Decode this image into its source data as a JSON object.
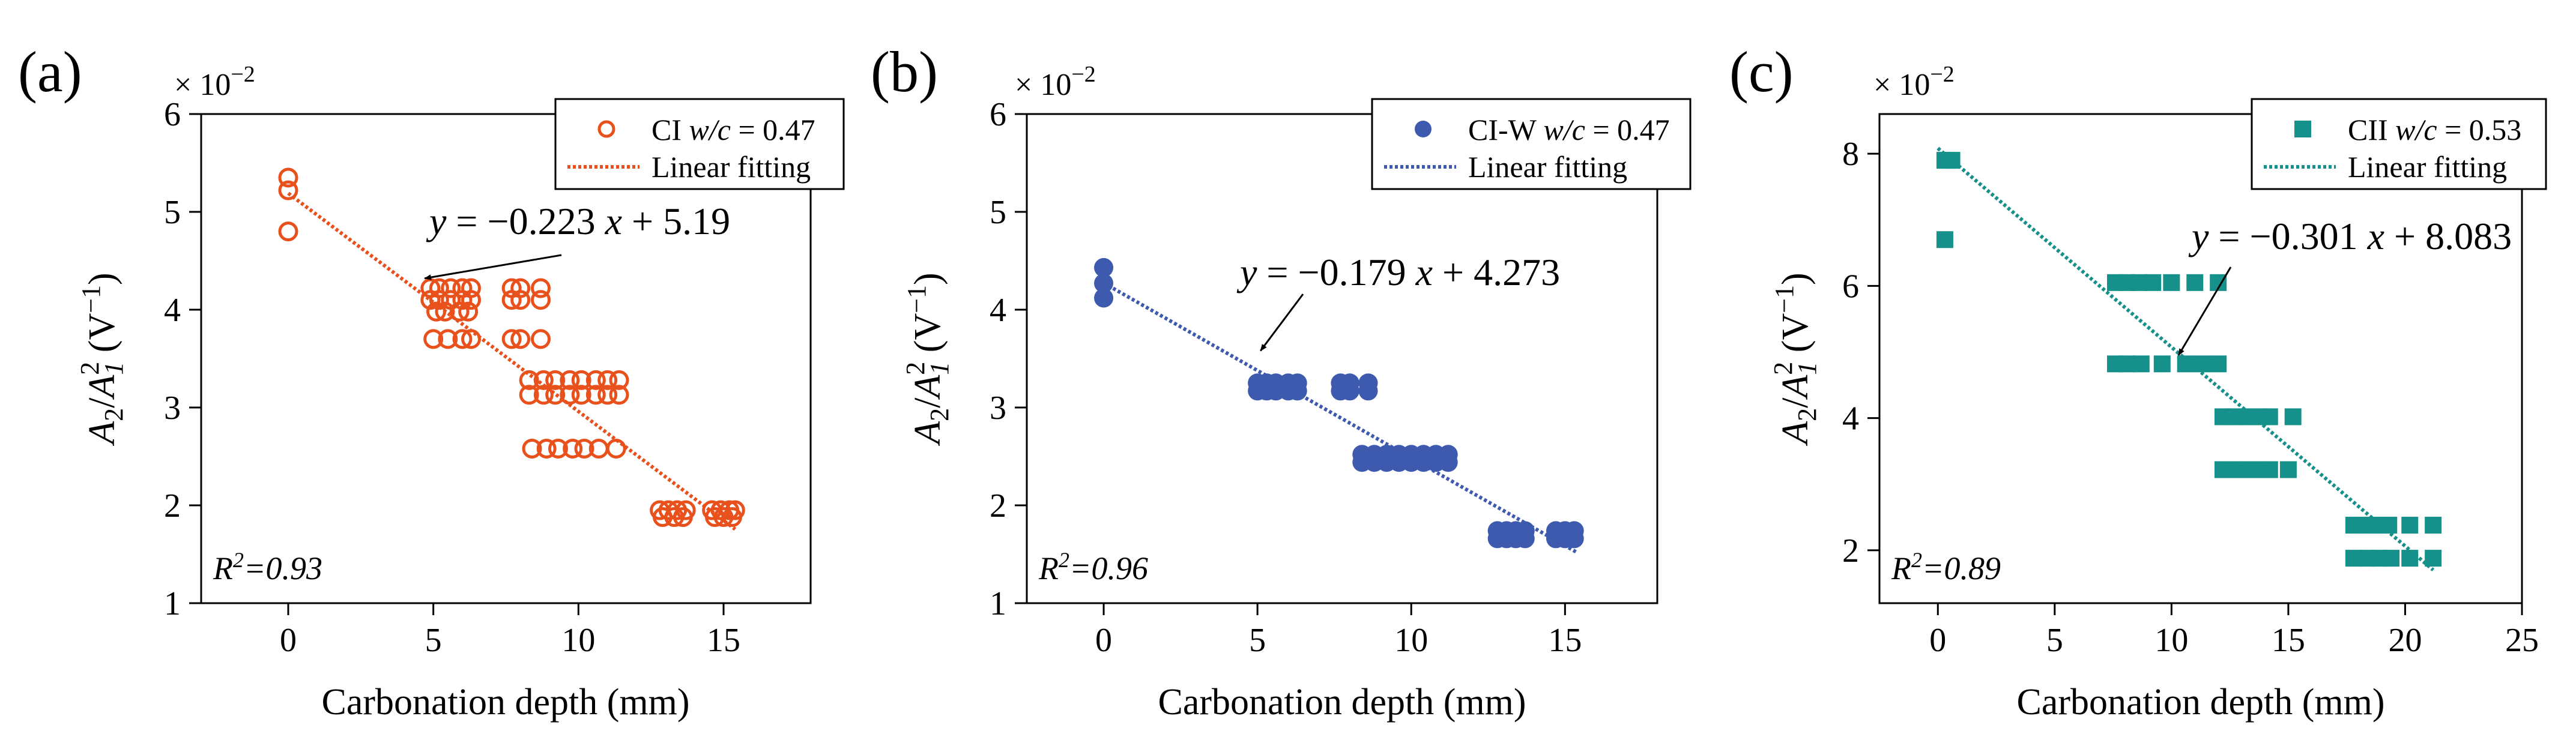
{
  "chart_data": [
    {
      "type": "scatter",
      "panel_label": "(a)",
      "multiplier": "× 10",
      "multiplier_exp": "−2",
      "xlabel": "Carbonation depth (mm)",
      "ylabel": {
        "a": "A",
        "sub_a": "2",
        "slash": "/",
        "b": "A",
        "sub_b": "1",
        "sup_b": "2",
        "unit": " (V",
        "unit_sup": "−1",
        "close": ")"
      },
      "xlim": [
        -3,
        18
      ],
      "ylim": [
        1,
        6
      ],
      "xticks": [
        0,
        5,
        10,
        15
      ],
      "yticks": [
        1,
        2,
        3,
        4,
        5,
        6
      ],
      "color": "#e8501c",
      "marker": "open-circle",
      "legend": {
        "placement": "top-right",
        "series_name": "CI ",
        "series_ratio": "w/c",
        "series_value": " = 0.47",
        "fit_name": "Linear fitting"
      },
      "fit": {
        "slope": -0.223,
        "intercept": 5.19,
        "x_range": [
          0,
          15.4
        ]
      },
      "equation": {
        "y": "y",
        "mid": " = −0.223 ",
        "x": "x",
        "tail": " + 5.19"
      },
      "r2": {
        "base": "R",
        "sup": "2",
        "value": "=0.93"
      },
      "arrow_to": [
        4.7,
        4.32
      ],
      "points": [
        [
          0,
          5.35
        ],
        [
          0,
          5.22
        ],
        [
          0,
          4.8
        ],
        [
          4.9,
          4.22
        ],
        [
          5.2,
          4.22
        ],
        [
          5.6,
          4.22
        ],
        [
          6.0,
          4.22
        ],
        [
          6.3,
          4.22
        ],
        [
          4.9,
          4.1
        ],
        [
          5.2,
          4.1
        ],
        [
          5.6,
          4.1
        ],
        [
          6.0,
          4.1
        ],
        [
          6.3,
          4.1
        ],
        [
          5.1,
          3.98
        ],
        [
          5.4,
          3.98
        ],
        [
          5.9,
          3.98
        ],
        [
          6.2,
          3.98
        ],
        [
          5.0,
          3.7
        ],
        [
          5.5,
          3.7
        ],
        [
          6.0,
          3.7
        ],
        [
          6.3,
          3.7
        ],
        [
          7.7,
          4.22
        ],
        [
          8.0,
          4.22
        ],
        [
          8.7,
          4.22
        ],
        [
          7.7,
          4.1
        ],
        [
          8.0,
          4.1
        ],
        [
          8.7,
          4.1
        ],
        [
          7.7,
          3.7
        ],
        [
          8.0,
          3.7
        ],
        [
          8.7,
          3.7
        ],
        [
          8.3,
          3.28
        ],
        [
          8.8,
          3.28
        ],
        [
          9.2,
          3.28
        ],
        [
          9.7,
          3.28
        ],
        [
          10.1,
          3.28
        ],
        [
          10.6,
          3.28
        ],
        [
          11.0,
          3.28
        ],
        [
          11.4,
          3.28
        ],
        [
          8.3,
          3.13
        ],
        [
          8.8,
          3.13
        ],
        [
          9.2,
          3.13
        ],
        [
          9.7,
          3.13
        ],
        [
          10.1,
          3.13
        ],
        [
          10.6,
          3.13
        ],
        [
          11.0,
          3.13
        ],
        [
          11.4,
          3.13
        ],
        [
          8.4,
          2.58
        ],
        [
          8.9,
          2.58
        ],
        [
          9.3,
          2.58
        ],
        [
          9.8,
          2.58
        ],
        [
          10.2,
          2.58
        ],
        [
          10.7,
          2.58
        ],
        [
          11.3,
          2.58
        ],
        [
          12.8,
          1.95
        ],
        [
          13.1,
          1.95
        ],
        [
          13.4,
          1.95
        ],
        [
          13.7,
          1.95
        ],
        [
          12.9,
          1.88
        ],
        [
          13.3,
          1.88
        ],
        [
          13.6,
          1.88
        ],
        [
          14.6,
          1.95
        ],
        [
          14.9,
          1.95
        ],
        [
          15.2,
          1.95
        ],
        [
          15.4,
          1.95
        ],
        [
          14.7,
          1.88
        ],
        [
          15.0,
          1.88
        ],
        [
          15.3,
          1.88
        ]
      ]
    },
    {
      "type": "scatter",
      "panel_label": "(b)",
      "multiplier": "× 10",
      "multiplier_exp": "−2",
      "xlabel": "Carbonation depth (mm)",
      "ylabel": {
        "a": "A",
        "sub_a": "2",
        "slash": "/",
        "b": "A",
        "sub_b": "1",
        "sup_b": "2",
        "unit": " (V",
        "unit_sup": "−1",
        "close": ")"
      },
      "xlim": [
        -2.5,
        18
      ],
      "ylim": [
        1,
        6
      ],
      "xticks": [
        0,
        5,
        10,
        15
      ],
      "yticks": [
        1,
        2,
        3,
        4,
        5,
        6
      ],
      "color": "#3d5aae",
      "marker": "filled-circle",
      "legend": {
        "placement": "top-right",
        "series_name": "CI-W ",
        "series_ratio": "w/c",
        "series_value": " = 0.47",
        "fit_name": "Linear fitting"
      },
      "fit": {
        "slope": -0.179,
        "intercept": 4.273,
        "x_range": [
          0,
          15.4
        ]
      },
      "equation": {
        "y": "y",
        "mid": " = −0.179 ",
        "x": "x",
        "tail": " + 4.273"
      },
      "r2": {
        "base": "R",
        "sup": "2",
        "value": "=0.96"
      },
      "arrow_to": [
        5.1,
        3.58
      ],
      "points": [
        [
          0,
          4.43
        ],
        [
          0,
          4.27
        ],
        [
          0,
          4.12
        ],
        [
          5.0,
          3.25
        ],
        [
          5.3,
          3.25
        ],
        [
          5.6,
          3.25
        ],
        [
          6.0,
          3.25
        ],
        [
          6.3,
          3.25
        ],
        [
          5.0,
          3.17
        ],
        [
          5.3,
          3.17
        ],
        [
          5.6,
          3.17
        ],
        [
          6.0,
          3.17
        ],
        [
          6.3,
          3.17
        ],
        [
          7.7,
          3.25
        ],
        [
          8.0,
          3.25
        ],
        [
          8.6,
          3.25
        ],
        [
          7.7,
          3.17
        ],
        [
          8.0,
          3.17
        ],
        [
          8.6,
          3.17
        ],
        [
          8.4,
          2.52
        ],
        [
          8.8,
          2.52
        ],
        [
          9.2,
          2.52
        ],
        [
          9.6,
          2.52
        ],
        [
          10.0,
          2.52
        ],
        [
          10.4,
          2.52
        ],
        [
          10.8,
          2.52
        ],
        [
          11.2,
          2.52
        ],
        [
          8.4,
          2.44
        ],
        [
          8.8,
          2.44
        ],
        [
          9.2,
          2.44
        ],
        [
          9.6,
          2.44
        ],
        [
          10.0,
          2.44
        ],
        [
          10.4,
          2.44
        ],
        [
          10.8,
          2.44
        ],
        [
          11.2,
          2.44
        ],
        [
          12.8,
          1.74
        ],
        [
          13.1,
          1.74
        ],
        [
          13.4,
          1.74
        ],
        [
          13.7,
          1.74
        ],
        [
          12.8,
          1.66
        ],
        [
          13.1,
          1.66
        ],
        [
          13.4,
          1.66
        ],
        [
          13.7,
          1.66
        ],
        [
          14.7,
          1.74
        ],
        [
          15.0,
          1.74
        ],
        [
          15.3,
          1.74
        ],
        [
          14.7,
          1.66
        ],
        [
          15.0,
          1.66
        ],
        [
          15.3,
          1.66
        ]
      ]
    },
    {
      "type": "scatter",
      "panel_label": "(c)",
      "multiplier": "× 10",
      "multiplier_exp": "−2",
      "xlabel": "Carbonation depth (mm)",
      "ylabel": {
        "a": "A",
        "sub_a": "2",
        "slash": "/",
        "b": "A",
        "sub_b": "1",
        "sup_b": "2",
        "unit": " (V",
        "unit_sup": "−1",
        "close": ")"
      },
      "xlim": [
        -2.5,
        25
      ],
      "ylim": [
        1.2,
        8.6
      ],
      "xticks": [
        0,
        5,
        10,
        15,
        20,
        25
      ],
      "yticks": [
        2,
        4,
        6,
        8
      ],
      "color": "#15908a",
      "marker": "filled-square",
      "legend": {
        "placement": "top-right",
        "series_name": "CII ",
        "series_ratio": "w/c",
        "series_value": " = 0.53",
        "fit_name": "Linear fitting"
      },
      "fit": {
        "slope": -0.301,
        "intercept": 8.083,
        "x_range": [
          0,
          21.2
        ]
      },
      "equation": {
        "y": "y",
        "mid": " = −0.301 ",
        "x": "x",
        "tail": " + 8.083"
      },
      "r2": {
        "base": "R",
        "sup": "2",
        "value": "=0.89"
      },
      "arrow_to": [
        10.3,
        4.95
      ],
      "points": [
        [
          0.3,
          7.9
        ],
        [
          0.6,
          7.9
        ],
        [
          0.3,
          6.7
        ],
        [
          7.6,
          6.05
        ],
        [
          8.1,
          6.05
        ],
        [
          8.6,
          6.05
        ],
        [
          9.2,
          6.05
        ],
        [
          10.0,
          6.05
        ],
        [
          11.0,
          6.05
        ],
        [
          12.0,
          6.05
        ],
        [
          7.6,
          4.82
        ],
        [
          8.1,
          4.82
        ],
        [
          8.7,
          4.82
        ],
        [
          9.6,
          4.82
        ],
        [
          10.6,
          4.82
        ],
        [
          11.3,
          4.82
        ],
        [
          12.0,
          4.82
        ],
        [
          12.2,
          4.02
        ],
        [
          12.7,
          4.02
        ],
        [
          13.2,
          4.02
        ],
        [
          13.8,
          4.02
        ],
        [
          14.2,
          4.02
        ],
        [
          15.2,
          4.02
        ],
        [
          12.2,
          3.22
        ],
        [
          12.7,
          3.22
        ],
        [
          13.2,
          3.22
        ],
        [
          13.8,
          3.22
        ],
        [
          14.2,
          3.22
        ],
        [
          15.0,
          3.22
        ],
        [
          17.8,
          2.38
        ],
        [
          18.4,
          2.38
        ],
        [
          18.8,
          2.38
        ],
        [
          19.3,
          2.38
        ],
        [
          20.2,
          2.38
        ],
        [
          21.2,
          2.38
        ],
        [
          17.8,
          1.88
        ],
        [
          18.4,
          1.88
        ],
        [
          18.9,
          1.88
        ],
        [
          19.4,
          1.88
        ],
        [
          20.2,
          1.88
        ],
        [
          21.2,
          1.88
        ]
      ]
    }
  ]
}
